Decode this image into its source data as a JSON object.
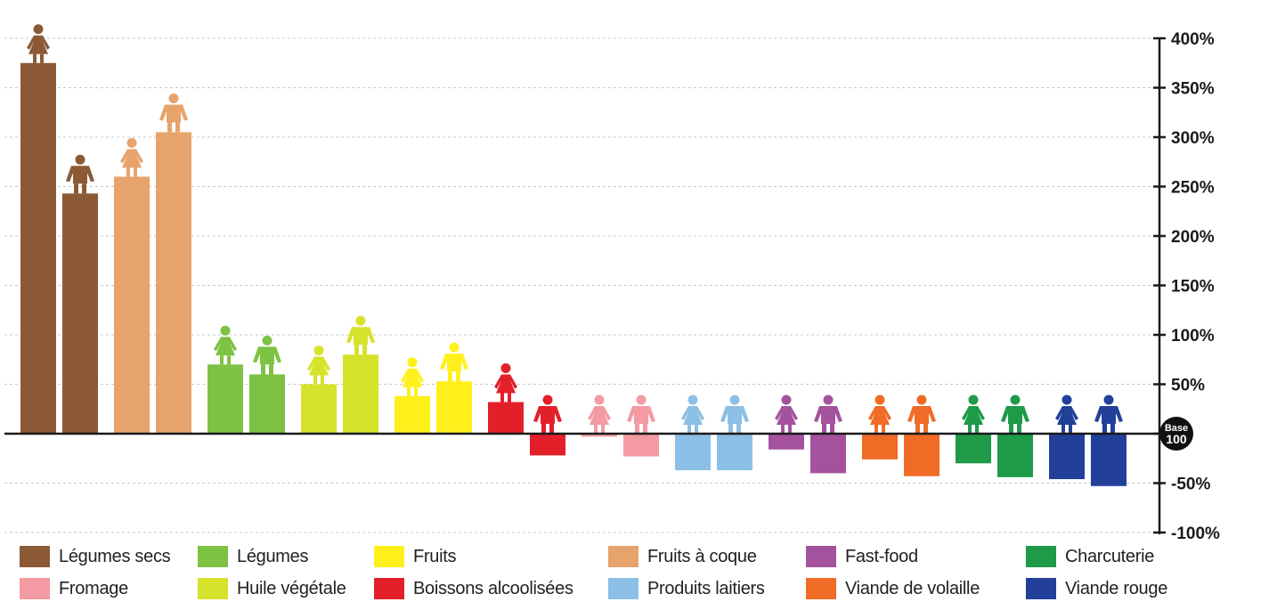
{
  "chart_data": {
    "type": "bar",
    "title": "",
    "xlabel": "",
    "ylabel": "",
    "ylim": [
      -100,
      400
    ],
    "y_ticks": [
      400,
      350,
      300,
      250,
      200,
      150,
      100,
      50,
      0,
      -50,
      -100
    ],
    "y_tick_labels": [
      "400%",
      "350%",
      "300%",
      "250%",
      "200%",
      "150%",
      "100%",
      "50%",
      "",
      "-50%",
      "-100%"
    ],
    "baseline_marker": {
      "top": "Base",
      "bottom": "100"
    },
    "grid": true,
    "axis_position": "right",
    "legend_position": "bottom",
    "series": [
      {
        "name": "Femme",
        "figure": "woman-figure-icon"
      },
      {
        "name": "Homme",
        "figure": "man-figure-icon"
      }
    ],
    "categories": [
      {
        "label": "Légumes secs",
        "color": "#8B5A35",
        "values": [
          375,
          243
        ]
      },
      {
        "label": "Fruits à coque",
        "color": "#E6A46C",
        "values": [
          260,
          305
        ]
      },
      {
        "label": "Légumes",
        "color": "#7DC243",
        "values": [
          70,
          60
        ]
      },
      {
        "label": "Huile végétale",
        "color": "#D7E22A",
        "values": [
          50,
          80
        ]
      },
      {
        "label": "Fruits",
        "color": "#FFF01C",
        "values": [
          38,
          53
        ]
      },
      {
        "label": "Boissons alcoolisées",
        "color": "#E3202A",
        "values": [
          32,
          -22
        ]
      },
      {
        "label": "Fromage",
        "color": "#F39AA2",
        "values": [
          -3,
          -23
        ]
      },
      {
        "label": "Produits laitiers",
        "color": "#8CBFE6",
        "values": [
          -37,
          -37
        ]
      },
      {
        "label": "Fast-food",
        "color": "#A4529E",
        "values": [
          -16,
          -40
        ]
      },
      {
        "label": "Viande de volaille",
        "color": "#EF6B26",
        "values": [
          -26,
          -43
        ]
      },
      {
        "label": "Charcuterie",
        "color": "#1E9A49",
        "values": [
          -30,
          -44
        ]
      },
      {
        "label": "Viande rouge",
        "color": "#22409A",
        "values": [
          -46,
          -53
        ]
      }
    ]
  },
  "legend_order": [
    0,
    6,
    2,
    3,
    4,
    5,
    1,
    7,
    8,
    9,
    10,
    11
  ]
}
